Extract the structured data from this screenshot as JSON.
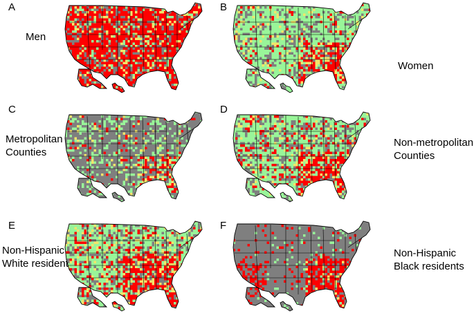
{
  "panels": [
    {
      "letter": "A",
      "label": [
        "Men"
      ],
      "base": "#ff0000",
      "pattern": "men"
    },
    {
      "letter": "B",
      "label": [
        "Women"
      ],
      "base": "#99f599",
      "pattern": "women"
    },
    {
      "letter": "C",
      "label": [
        "Metropolitan",
        "Counties"
      ],
      "base": "#7f7f7f",
      "pattern": "metro"
    },
    {
      "letter": "D",
      "label": [
        "Non-metropolitan",
        "Counties"
      ],
      "base": "#99f599",
      "pattern": "nonmetro"
    },
    {
      "letter": "E",
      "label": [
        "Non-Hispanic",
        "White residents"
      ],
      "base": "#99f599",
      "pattern": "white"
    },
    {
      "letter": "F",
      "label": [
        "Non-Hispanic",
        "Black residents"
      ],
      "base": "#7f7f7f",
      "pattern": "black"
    }
  ],
  "colors": {
    "red": "#ff0000",
    "green": "#99f599",
    "gray": "#7f7f7f",
    "yellow": "#f2e56b",
    "outline": "#000000"
  }
}
